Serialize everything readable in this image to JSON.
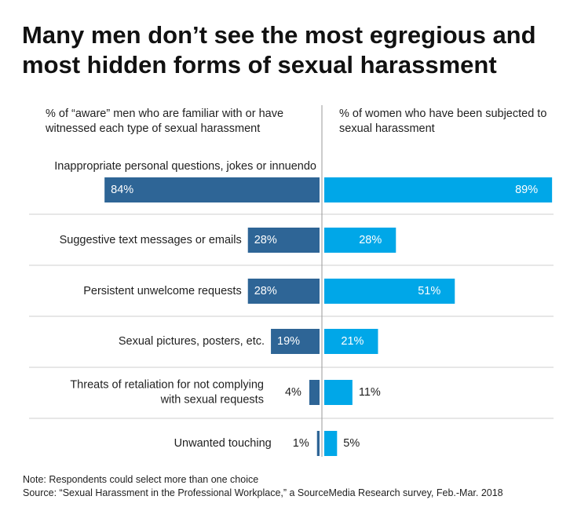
{
  "title": "Many men don’t see the most egregious and most hidden forms of sexual harassment",
  "chart_data": {
    "type": "bar",
    "orientation": "horizontal-diverging",
    "left_header": "% of “aware” men who are familiar with or have witnessed each type of sexual harassment",
    "right_header": "% of women who have been subjected to sexual harassment",
    "categories": [
      [
        "Inappropriate personal questions, jokes or innuendo"
      ],
      [
        "Suggestive text messages or emails"
      ],
      [
        "Persistent unwelcome requests"
      ],
      [
        "Sexual pictures, posters, etc."
      ],
      [
        "Threats of retaliation for not complying",
        "with sexual requests"
      ],
      [
        "Unwanted touching"
      ]
    ],
    "series": [
      {
        "name": "Men",
        "values": [
          84,
          28,
          28,
          19,
          4,
          1
        ],
        "labels": [
          "84%",
          "28%",
          "28%",
          "19%",
          "4%",
          "1%"
        ],
        "color": "#2e6596"
      },
      {
        "name": "Women",
        "values": [
          89,
          28,
          51,
          21,
          11,
          5
        ],
        "labels": [
          "89%",
          "28%",
          "51%",
          "21%",
          "11%",
          "5%"
        ],
        "color": "#00a7e8"
      }
    ],
    "xlim": [
      0,
      100
    ]
  },
  "note": "Note: Respondents could select more than one choice",
  "source": "Source: “Sexual Harassment in the Professional Workplace,” a SourceMedia Research survey, Feb.-Mar. 2018"
}
